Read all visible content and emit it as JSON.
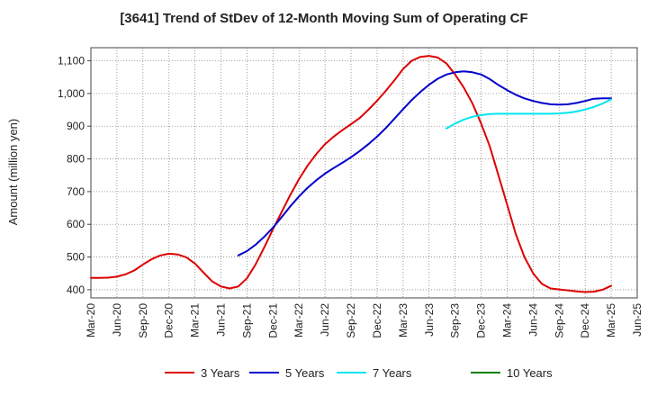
{
  "chart_data": {
    "type": "line",
    "title": "[3641]  Trend of StDev of 12-Month Moving Sum of Operating CF",
    "ylabel": "Amount (million yen)",
    "xlabel": "",
    "ylim": [
      375,
      1140
    ],
    "yticks": [
      400,
      500,
      600,
      700,
      800,
      900,
      1000,
      1100
    ],
    "ytick_labels": [
      "400",
      "500",
      "600",
      "700",
      "800",
      "900",
      "1,000",
      "1,100"
    ],
    "x_start": "Mar-20",
    "x_end": "Jun-25",
    "xticks": [
      "Mar-20",
      "Jun-20",
      "Sep-20",
      "Dec-20",
      "Mar-21",
      "Jun-21",
      "Sep-21",
      "Dec-21",
      "Mar-22",
      "Jun-22",
      "Sep-22",
      "Dec-22",
      "Mar-23",
      "Jun-23",
      "Sep-23",
      "Dec-23",
      "Mar-24",
      "Jun-24",
      "Sep-24",
      "Dec-24",
      "Mar-25",
      "Jun-25"
    ],
    "grid": true,
    "legend_position": "bottom",
    "series": [
      {
        "name": "3 Years",
        "color": "#dd0000",
        "x": [
          "Mar-20",
          "Apr-20",
          "May-20",
          "Jun-20",
          "Jul-20",
          "Aug-20",
          "Sep-20",
          "Oct-20",
          "Nov-20",
          "Dec-20",
          "Jan-21",
          "Feb-21",
          "Mar-21",
          "Apr-21",
          "May-21",
          "Jun-21",
          "Jul-21",
          "Aug-21",
          "Sep-21",
          "Oct-21",
          "Nov-21",
          "Dec-21",
          "Jan-22",
          "Feb-22",
          "Mar-22",
          "Apr-22",
          "May-22",
          "Jun-22",
          "Jul-22",
          "Aug-22",
          "Sep-22",
          "Oct-22",
          "Nov-22",
          "Dec-22",
          "Jan-23",
          "Feb-23",
          "Mar-23",
          "Apr-23",
          "May-23",
          "Jun-23",
          "Jul-23",
          "Aug-23",
          "Sep-23",
          "Oct-23",
          "Nov-23",
          "Dec-23",
          "Jan-24",
          "Feb-24",
          "Mar-24",
          "Apr-24",
          "May-24",
          "Jun-24",
          "Jul-24",
          "Aug-24",
          "Sep-24",
          "Oct-24",
          "Nov-24",
          "Dec-24",
          "Jan-25",
          "Feb-25",
          "Mar-25"
        ],
        "values": [
          436,
          436,
          437,
          440,
          447,
          459,
          477,
          493,
          505,
          510,
          508,
          499,
          480,
          452,
          425,
          410,
          404,
          410,
          435,
          478,
          530,
          585,
          638,
          690,
          738,
          780,
          815,
          845,
          868,
          888,
          906,
          925,
          950,
          978,
          1008,
          1040,
          1075,
          1100,
          1112,
          1115,
          1110,
          1092,
          1058,
          1018,
          970,
          908,
          838,
          750,
          660,
          570,
          500,
          450,
          418,
          404,
          401,
          398,
          395,
          393,
          394,
          400,
          412
        ]
      },
      {
        "name": "5 Years",
        "color": "#0000cc",
        "x": [
          "Aug-21",
          "Sep-21",
          "Oct-21",
          "Nov-21",
          "Dec-21",
          "Jan-22",
          "Feb-22",
          "Mar-22",
          "Apr-22",
          "May-22",
          "Jun-22",
          "Jul-22",
          "Aug-22",
          "Sep-22",
          "Oct-22",
          "Nov-22",
          "Dec-22",
          "Jan-23",
          "Feb-23",
          "Mar-23",
          "Apr-23",
          "May-23",
          "Jun-23",
          "Jul-23",
          "Aug-23",
          "Sep-23",
          "Oct-23",
          "Nov-23",
          "Dec-23",
          "Jan-24",
          "Feb-24",
          "Mar-24",
          "Apr-24",
          "May-24",
          "Jun-24",
          "Jul-24",
          "Aug-24",
          "Sep-24",
          "Oct-24",
          "Nov-24",
          "Dec-24",
          "Jan-25",
          "Feb-25",
          "Mar-25"
        ],
        "values": [
          505,
          518,
          538,
          562,
          590,
          622,
          655,
          685,
          712,
          735,
          755,
          772,
          788,
          805,
          824,
          845,
          868,
          894,
          923,
          952,
          980,
          1005,
          1027,
          1045,
          1058,
          1065,
          1068,
          1065,
          1058,
          1044,
          1026,
          1010,
          996,
          985,
          977,
          971,
          967,
          966,
          967,
          971,
          977,
          984,
          985,
          985
        ]
      },
      {
        "name": "7 Years",
        "color": "#00e5ee",
        "x": [
          "Aug-23",
          "Sep-23",
          "Oct-23",
          "Nov-23",
          "Dec-23",
          "Jan-24",
          "Feb-24",
          "Mar-24",
          "Apr-24",
          "May-24",
          "Jun-24",
          "Jul-24",
          "Aug-24",
          "Sep-24",
          "Oct-24",
          "Nov-24",
          "Dec-24",
          "Jan-25",
          "Feb-25",
          "Mar-25"
        ],
        "values": [
          893,
          908,
          920,
          929,
          934,
          937,
          938,
          938,
          938,
          938,
          938,
          938,
          938,
          939,
          941,
          945,
          951,
          959,
          969,
          982
        ]
      },
      {
        "name": "10 Years",
        "color": "#008000",
        "x": [],
        "values": []
      }
    ]
  }
}
